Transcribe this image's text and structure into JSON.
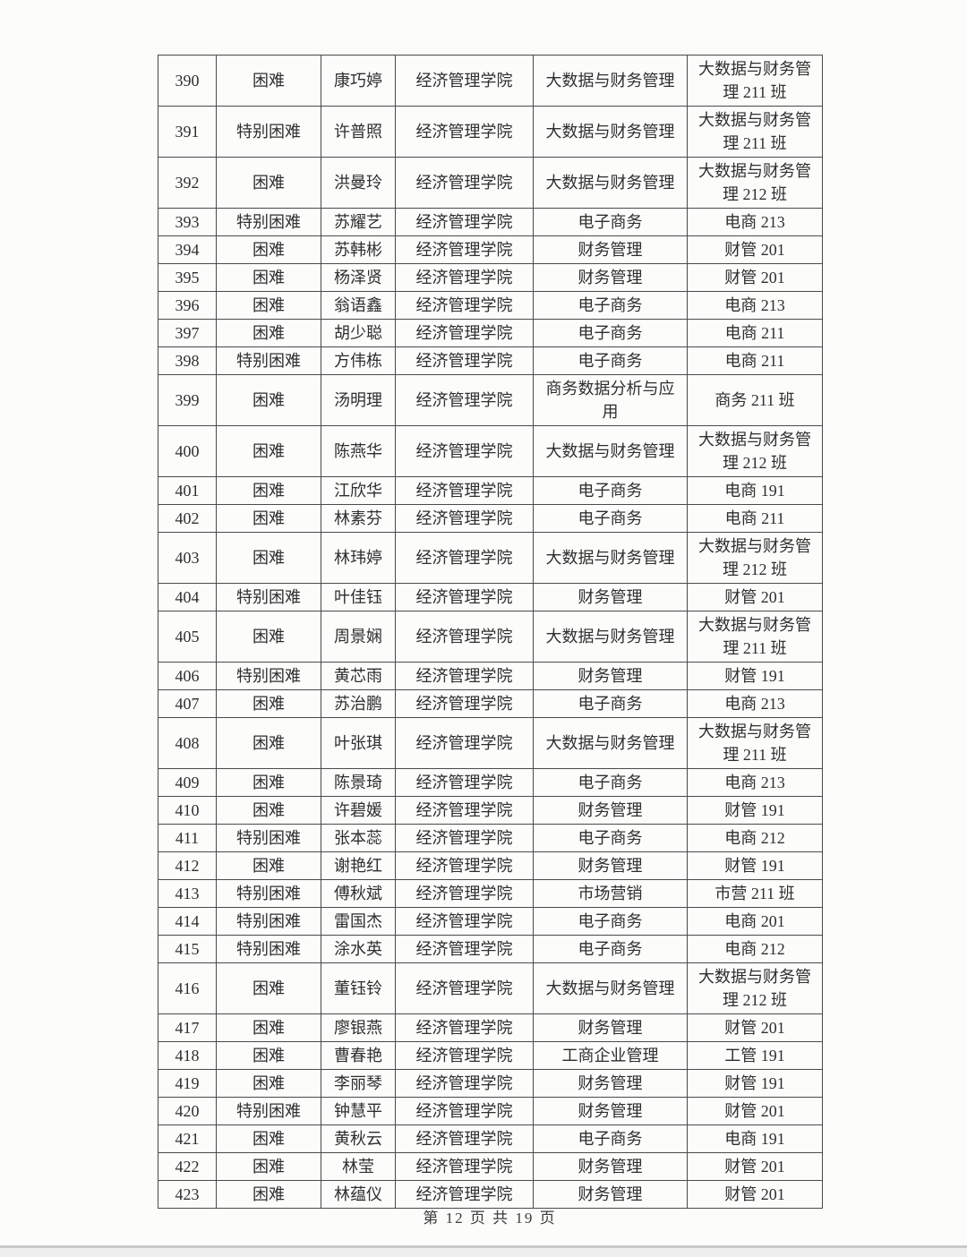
{
  "table": {
    "column_keys": [
      "no",
      "status",
      "name",
      "college",
      "major",
      "class_name"
    ],
    "rows": [
      {
        "no": "390",
        "status": "困难",
        "name": "康巧婷",
        "college": "经济管理学院",
        "major": "大数据与财务管理",
        "class_name": "大数据与财务管\n理 211 班",
        "tall": true
      },
      {
        "no": "391",
        "status": "特别困难",
        "name": "许普照",
        "college": "经济管理学院",
        "major": "大数据与财务管理",
        "class_name": "大数据与财务管\n理 211 班",
        "tall": true
      },
      {
        "no": "392",
        "status": "困难",
        "name": "洪曼玲",
        "college": "经济管理学院",
        "major": "大数据与财务管理",
        "class_name": "大数据与财务管\n理 212 班",
        "tall": true
      },
      {
        "no": "393",
        "status": "特别困难",
        "name": "苏耀艺",
        "college": "经济管理学院",
        "major": "电子商务",
        "class_name": "电商 213",
        "tall": false
      },
      {
        "no": "394",
        "status": "困难",
        "name": "苏韩彬",
        "college": "经济管理学院",
        "major": "财务管理",
        "class_name": "财管 201",
        "tall": false
      },
      {
        "no": "395",
        "status": "困难",
        "name": "杨泽贤",
        "college": "经济管理学院",
        "major": "财务管理",
        "class_name": "财管 201",
        "tall": false
      },
      {
        "no": "396",
        "status": "困难",
        "name": "翁语鑫",
        "college": "经济管理学院",
        "major": "电子商务",
        "class_name": "电商 213",
        "tall": false
      },
      {
        "no": "397",
        "status": "困难",
        "name": "胡少聪",
        "college": "经济管理学院",
        "major": "电子商务",
        "class_name": "电商 211",
        "tall": false
      },
      {
        "no": "398",
        "status": "特别困难",
        "name": "方伟栋",
        "college": "经济管理学院",
        "major": "电子商务",
        "class_name": "电商 211",
        "tall": false
      },
      {
        "no": "399",
        "status": "困难",
        "name": "汤明理",
        "college": "经济管理学院",
        "major": "商务数据分析与应\n用",
        "class_name": "商务 211 班",
        "tall": true
      },
      {
        "no": "400",
        "status": "困难",
        "name": "陈燕华",
        "college": "经济管理学院",
        "major": "大数据与财务管理",
        "class_name": "大数据与财务管\n理 212 班",
        "tall": true
      },
      {
        "no": "401",
        "status": "困难",
        "name": "江欣华",
        "college": "经济管理学院",
        "major": "电子商务",
        "class_name": "电商 191",
        "tall": false
      },
      {
        "no": "402",
        "status": "困难",
        "name": "林素芬",
        "college": "经济管理学院",
        "major": "电子商务",
        "class_name": "电商 211",
        "tall": false
      },
      {
        "no": "403",
        "status": "困难",
        "name": "林玮婷",
        "college": "经济管理学院",
        "major": "大数据与财务管理",
        "class_name": "大数据与财务管\n理 212 班",
        "tall": true
      },
      {
        "no": "404",
        "status": "特别困难",
        "name": "叶佳钰",
        "college": "经济管理学院",
        "major": "财务管理",
        "class_name": "财管 201",
        "tall": false
      },
      {
        "no": "405",
        "status": "困难",
        "name": "周景娴",
        "college": "经济管理学院",
        "major": "大数据与财务管理",
        "class_name": "大数据与财务管\n理 211 班",
        "tall": true
      },
      {
        "no": "406",
        "status": "特别困难",
        "name": "黄芯雨",
        "college": "经济管理学院",
        "major": "财务管理",
        "class_name": "财管 191",
        "tall": false
      },
      {
        "no": "407",
        "status": "困难",
        "name": "苏治鹏",
        "college": "经济管理学院",
        "major": "电子商务",
        "class_name": "电商 213",
        "tall": false
      },
      {
        "no": "408",
        "status": "困难",
        "name": "叶张琪",
        "college": "经济管理学院",
        "major": "大数据与财务管理",
        "class_name": "大数据与财务管\n理 211 班",
        "tall": true
      },
      {
        "no": "409",
        "status": "困难",
        "name": "陈景琦",
        "college": "经济管理学院",
        "major": "电子商务",
        "class_name": "电商 213",
        "tall": false
      },
      {
        "no": "410",
        "status": "困难",
        "name": "许碧媛",
        "college": "经济管理学院",
        "major": "财务管理",
        "class_name": "财管 191",
        "tall": false
      },
      {
        "no": "411",
        "status": "特别困难",
        "name": "张本蕊",
        "college": "经济管理学院",
        "major": "电子商务",
        "class_name": "电商 212",
        "tall": false
      },
      {
        "no": "412",
        "status": "困难",
        "name": "谢艳红",
        "college": "经济管理学院",
        "major": "财务管理",
        "class_name": "财管 191",
        "tall": false
      },
      {
        "no": "413",
        "status": "特别困难",
        "name": "傅秋斌",
        "college": "经济管理学院",
        "major": "市场营销",
        "class_name": "市营 211 班",
        "tall": false
      },
      {
        "no": "414",
        "status": "特别困难",
        "name": "雷国杰",
        "college": "经济管理学院",
        "major": "电子商务",
        "class_name": "电商 201",
        "tall": false
      },
      {
        "no": "415",
        "status": "特别困难",
        "name": "涂水英",
        "college": "经济管理学院",
        "major": "电子商务",
        "class_name": "电商 212",
        "tall": false
      },
      {
        "no": "416",
        "status": "困难",
        "name": "董钰铃",
        "college": "经济管理学院",
        "major": "大数据与财务管理",
        "class_name": "大数据与财务管\n理 212 班",
        "tall": true
      },
      {
        "no": "417",
        "status": "困难",
        "name": "廖银燕",
        "college": "经济管理学院",
        "major": "财务管理",
        "class_name": "财管 201",
        "tall": false
      },
      {
        "no": "418",
        "status": "困难",
        "name": "曹春艳",
        "college": "经济管理学院",
        "major": "工商企业管理",
        "class_name": "工管 191",
        "tall": false
      },
      {
        "no": "419",
        "status": "困难",
        "name": "李丽琴",
        "college": "经济管理学院",
        "major": "财务管理",
        "class_name": "财管 191",
        "tall": false
      },
      {
        "no": "420",
        "status": "特别困难",
        "name": "钟慧平",
        "college": "经济管理学院",
        "major": "财务管理",
        "class_name": "财管 201",
        "tall": false
      },
      {
        "no": "421",
        "status": "困难",
        "name": "黄秋云",
        "college": "经济管理学院",
        "major": "电子商务",
        "class_name": "电商 191",
        "tall": false
      },
      {
        "no": "422",
        "status": "困难",
        "name": "林莹",
        "college": "经济管理学院",
        "major": "财务管理",
        "class_name": "财管 201",
        "tall": false
      },
      {
        "no": "423",
        "status": "困难",
        "name": "林蕴仪",
        "college": "经济管理学院",
        "major": "财务管理",
        "class_name": "财管 201",
        "tall": false
      }
    ]
  },
  "footer": {
    "text": "第 12 页 共 19 页"
  },
  "colors": {
    "table_border": "#4a4a4a",
    "text": "#2e2e2e",
    "page_background": "#fcfcfb",
    "bottom_bar": "#efefef",
    "bottom_bar_line": "#c9c9c9"
  }
}
